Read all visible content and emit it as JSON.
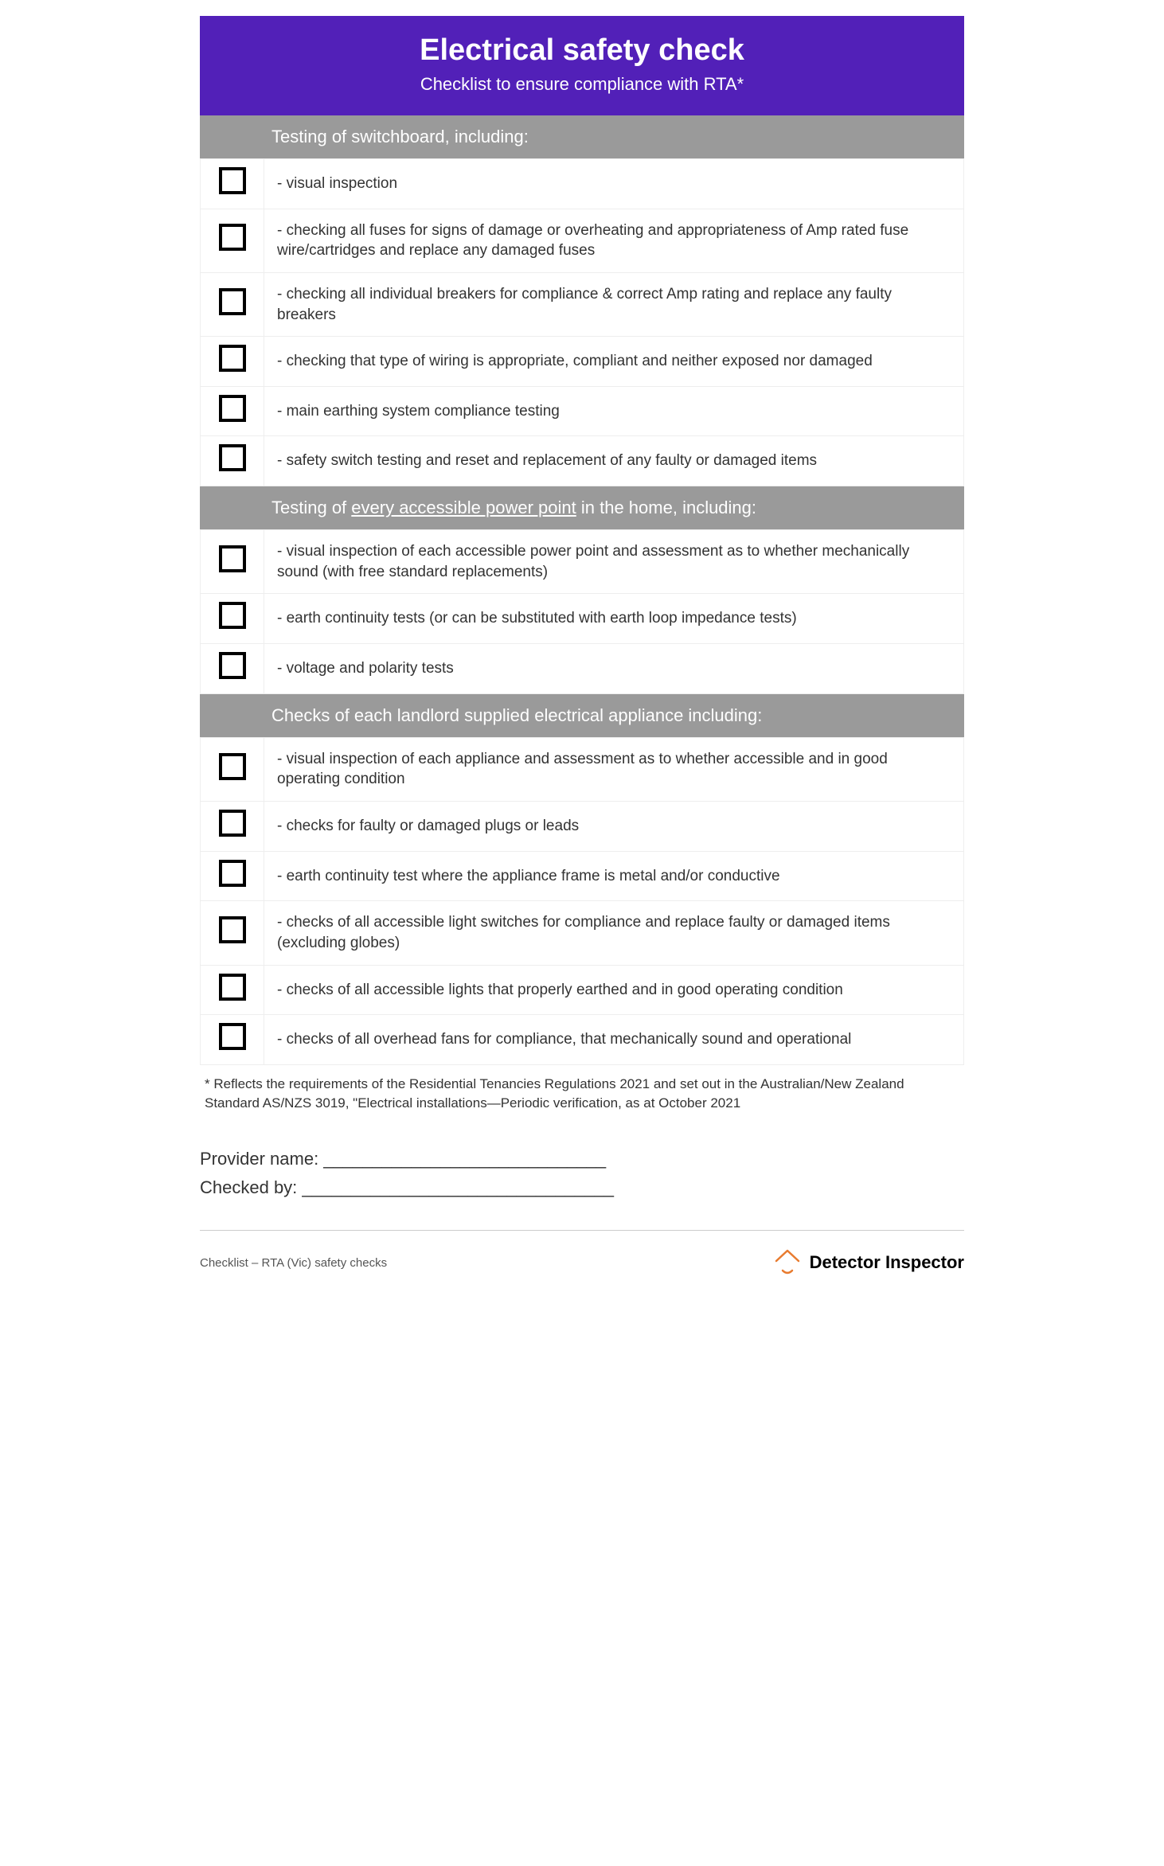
{
  "colors": {
    "header_bg": "#5220b8",
    "header_text": "#ffffff",
    "section_bg": "#9a9a9a",
    "section_text": "#ffffff",
    "row_border": "#eeeeee",
    "checkbox_border": "#000000",
    "body_text": "#333333",
    "footer_rule": "#cccccc",
    "logo_accent": "#e87b2f"
  },
  "header": {
    "title": "Electrical safety check",
    "subtitle": "Checklist to ensure compliance with RTA*"
  },
  "sections": [
    {
      "heading_before": "Testing of switchboard, including:",
      "heading_underlined": "",
      "heading_after": "",
      "items": [
        "- visual inspection",
        "- checking all fuses for signs of damage or overheating and appropriateness of Amp rated fuse wire/cartridges and replace any damaged fuses",
        "- checking all individual breakers for compliance & correct Amp rating and replace any faulty breakers",
        "- checking that type of wiring is appropriate, compliant and neither exposed nor damaged",
        "- main earthing system compliance testing",
        "- safety switch testing and reset and replacement of any faulty or damaged items"
      ]
    },
    {
      "heading_before": "Testing of ",
      "heading_underlined": "every accessible power point",
      "heading_after": " in the home, including:",
      "items": [
        "- visual inspection of each accessible power point and assessment as to whether mechanically sound (with free standard replacements)",
        "- earth continuity tests (or can be substituted with earth loop impedance tests)",
        "- voltage and polarity tests"
      ]
    },
    {
      "heading_before": "Checks of each landlord supplied electrical appliance including:",
      "heading_underlined": "",
      "heading_after": "",
      "items": [
        "- visual inspection of each appliance and assessment as to whether accessible and in good operating condition",
        "- checks for faulty or damaged plugs or leads",
        "- earth continuity test where the appliance frame is metal and/or conductive",
        "- checks of all accessible light switches for compliance and replace faulty or damaged items (excluding globes)",
        "- checks of all accessible lights that properly earthed and in good operating condition",
        "- checks of all overhead fans for compliance, that mechanically sound and operational"
      ]
    }
  ],
  "footnote": "* Reflects the requirements of the Residential Tenancies Regulations 2021 and set out in the Australian/New Zealand Standard AS/NZS 3019, \"Electrical installations—Periodic verification, as at October 2021",
  "signoff": {
    "provider_label": "Provider name: _____________________________",
    "checked_label": "Checked by: ________________________________"
  },
  "footer": {
    "left": "Checklist – RTA (Vic) safety checks",
    "logo_text": "Detector Inspector"
  }
}
